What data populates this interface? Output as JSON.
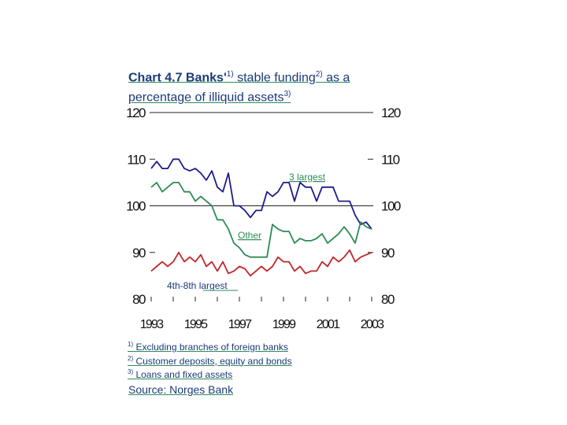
{
  "title": {
    "prefix": "Chart 4.7 Banks'",
    "sup1": "1)",
    "mid": " stable funding",
    "sup2": "2)",
    "suffix1": " as a",
    "line2": "percentage of illiquid assets",
    "sup3": "3)"
  },
  "chart_data": {
    "type": "line",
    "x_tick_labels": [
      "1993",
      "1995",
      "1997",
      "1999",
      "2001",
      "2003"
    ],
    "y_tick_labels": [
      "120",
      "110",
      "100",
      "90",
      "80"
    ],
    "ylim": [
      80,
      120
    ],
    "xlim": [
      1993,
      2003
    ],
    "grid": "horizontal at 100 and 120",
    "series": [
      {
        "name": "3 largest",
        "color": "#1c1c8c",
        "x": [
          1993.0,
          1993.25,
          1993.5,
          1993.75,
          1994.0,
          1994.25,
          1994.5,
          1994.75,
          1995.0,
          1995.25,
          1995.5,
          1995.75,
          1996.0,
          1996.25,
          1996.5,
          1996.75,
          1997.0,
          1997.25,
          1997.5,
          1997.75,
          1998.0,
          1998.25,
          1998.5,
          1998.75,
          1999.0,
          1999.25,
          1999.5,
          1999.75,
          2000.0,
          2000.25,
          2000.5,
          2000.75,
          2001.0,
          2001.25,
          2001.5,
          2001.75,
          2002.0,
          2002.25,
          2002.5,
          2002.75,
          2003.0
        ],
        "values": [
          108,
          109.5,
          108,
          108,
          110,
          110,
          108,
          107.5,
          108,
          107,
          105.5,
          107.5,
          104,
          103,
          107,
          100,
          100,
          99,
          97.5,
          99,
          99,
          103,
          102,
          103,
          105,
          105,
          101,
          105,
          104,
          104,
          101,
          104,
          104,
          104,
          101,
          101,
          101,
          98,
          96,
          96.5,
          95
        ]
      },
      {
        "name": "Other",
        "color": "#2e8b57",
        "x": [
          1993.0,
          1993.25,
          1993.5,
          1993.75,
          1994.0,
          1994.25,
          1994.5,
          1994.75,
          1995.0,
          1995.25,
          1995.5,
          1995.75,
          1996.0,
          1996.25,
          1996.5,
          1996.75,
          1997.0,
          1997.25,
          1997.5,
          1997.75,
          1998.0,
          1998.25,
          1998.5,
          1998.75,
          1999.0,
          1999.25,
          1999.5,
          1999.75,
          2000.0,
          2000.25,
          2000.5,
          2000.75,
          2001.0,
          2001.25,
          2001.5,
          2001.75,
          2002.0,
          2002.25,
          2002.5,
          2002.75,
          2003.0
        ],
        "values": [
          104,
          105,
          103,
          104,
          105,
          105,
          103,
          103,
          101,
          102,
          101,
          100,
          97,
          97,
          95,
          92,
          91,
          89.5,
          89,
          89,
          89,
          89,
          96,
          95,
          94.5,
          94.5,
          92,
          93,
          92.5,
          92.5,
          93,
          94,
          92,
          93,
          94,
          95.5,
          94,
          92,
          96.5,
          95.5,
          95
        ]
      },
      {
        "name": "4th-8th largest",
        "color": "#c0282a",
        "x": [
          1993.0,
          1993.25,
          1993.5,
          1993.75,
          1994.0,
          1994.25,
          1994.5,
          1994.75,
          1995.0,
          1995.25,
          1995.5,
          1995.75,
          1996.0,
          1996.25,
          1996.5,
          1996.75,
          1997.0,
          1997.25,
          1997.5,
          1997.75,
          1998.0,
          1998.25,
          1998.5,
          1998.75,
          1999.0,
          1999.25,
          1999.5,
          1999.75,
          2000.0,
          2000.25,
          2000.5,
          2000.75,
          2001.0,
          2001.25,
          2001.5,
          2001.75,
          2002.0,
          2002.25,
          2002.5,
          2002.75,
          2003.0
        ],
        "values": [
          86,
          87,
          88,
          87,
          88,
          90,
          88,
          89,
          88,
          89.5,
          87,
          88,
          86,
          88,
          85.5,
          86,
          87,
          86.5,
          85,
          86,
          87,
          86,
          87,
          89,
          88,
          88,
          86,
          87,
          85.5,
          86,
          86,
          88,
          87,
          89,
          88,
          89,
          90.5,
          88,
          89,
          89.5,
          90
        ]
      }
    ]
  },
  "labels": {
    "s1": "3 largest",
    "s2": "Other",
    "s3": "4th-8th largest"
  },
  "footnotes": {
    "n1_sup": "1)",
    "n1": " Excluding branches of  foreign banks",
    "n2_sup": "2)",
    "n2": " Customer deposits, equity and bonds",
    "n3_sup": "3)",
    "n3": " Loans and fixed assets"
  },
  "source": "Source: Norges Bank"
}
